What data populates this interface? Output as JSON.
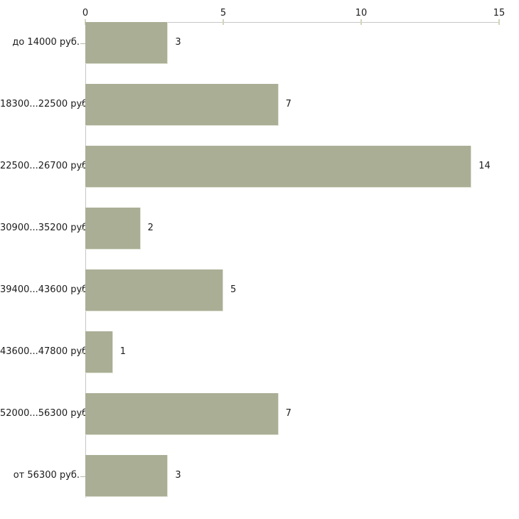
{
  "chart_data": {
    "type": "bar",
    "orientation": "horizontal",
    "title": "",
    "xlabel": "",
    "ylabel": "",
    "categories": [
      "до 14000 руб.",
      "18300...22500 руб.",
      "22500...26700 руб.",
      "30900...35200 руб.",
      "39400...43600 руб.",
      "43600...47800 руб.",
      "52000...56300 руб.",
      "от 56300 руб."
    ],
    "values": [
      3,
      7,
      14,
      2,
      5,
      1,
      7,
      3
    ],
    "value_labels": [
      "3",
      "7",
      "14",
      "2",
      "5",
      "1",
      "7",
      "3"
    ],
    "x_ticks": [
      0,
      5,
      10,
      15
    ],
    "x_tick_labels": [
      "0",
      "5",
      "10",
      "15"
    ],
    "xlim": [
      0,
      15
    ],
    "grid": false,
    "legend": false,
    "axis_position": "top",
    "colors": {
      "bar_fill": "#a9ae95",
      "bar_edge": "#dfe2d3",
      "axis_line": "#c6c6c6",
      "axis_tick_mark": "#d2d5bd",
      "category_tick_mark": "#b4b8a6",
      "text": "#1c1c1c",
      "background": "#ffffff"
    }
  }
}
